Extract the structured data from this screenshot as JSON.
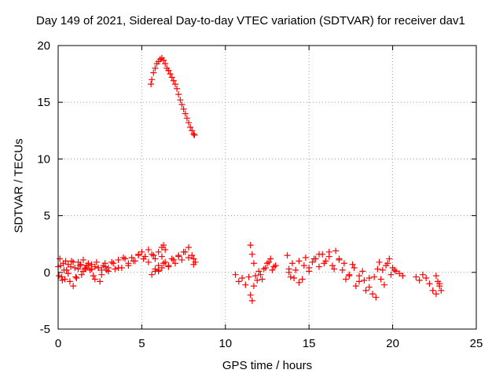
{
  "chart_data": {
    "type": "scatter",
    "title": "Day 149 of 2021, Sidereal Day-to-day VTEC variation (SDTVAR) for receiver dav1",
    "xlabel": "GPS time / hours",
    "ylabel": "SDTVAR / TECUs",
    "xlim": [
      0,
      25
    ],
    "ylim": [
      -5,
      20
    ],
    "xticks": [
      0,
      5,
      10,
      15,
      20,
      25
    ],
    "yticks": [
      -5,
      0,
      5,
      10,
      15,
      20
    ],
    "grid": true,
    "marker": "plus",
    "color": "#ff0000",
    "series": [
      {
        "name": "SDTVAR",
        "x": [
          0.0,
          0.1,
          0.2,
          0.3,
          0.4,
          0.5,
          0.6,
          0.7,
          0.8,
          0.9,
          1.0,
          1.1,
          1.2,
          1.3,
          1.4,
          1.5,
          1.6,
          1.7,
          1.8,
          1.9,
          2.0,
          2.1,
          2.2,
          2.3,
          2.4,
          2.5,
          2.6,
          2.7,
          2.8,
          2.9,
          3.0,
          3.2,
          3.4,
          3.6,
          3.8,
          4.0,
          4.2,
          4.4,
          4.6,
          4.8,
          5.0,
          5.2,
          5.4,
          5.6,
          5.8,
          6.0,
          6.2,
          6.3,
          6.4,
          6.2,
          6.0,
          5.8,
          5.6,
          5.8,
          6.0,
          6.2,
          6.4,
          6.6,
          6.8,
          7.0,
          7.2,
          7.4,
          7.6,
          7.8,
          8.0,
          8.1,
          8.2,
          5.55,
          5.6,
          5.7,
          5.8,
          5.9,
          6.0,
          6.1,
          6.2,
          6.3,
          6.4,
          6.5,
          6.6,
          6.7,
          6.8,
          6.9,
          7.0,
          7.1,
          7.2,
          7.3,
          7.4,
          7.5,
          7.6,
          7.7,
          7.8,
          7.9,
          8.0,
          8.1,
          8.15,
          0.05,
          0.15,
          0.25,
          0.35,
          0.45,
          0.6,
          0.75,
          0.9,
          1.05,
          1.2,
          1.35,
          1.5,
          1.65,
          1.8,
          2.0,
          2.2,
          2.4,
          2.6,
          2.8,
          3.0,
          3.3,
          3.6,
          3.9,
          4.2,
          4.5,
          4.8,
          5.1,
          5.4,
          5.7,
          6.0,
          6.3,
          6.6,
          6.9,
          7.2,
          7.5,
          7.8,
          8.1,
          10.6,
          10.8,
          11.0,
          11.2,
          11.4,
          11.5,
          11.6,
          11.7,
          11.8,
          12.0,
          12.2,
          12.4,
          12.6,
          12.8,
          13.0,
          11.5,
          11.6,
          11.7,
          11.9,
          12.1,
          12.3,
          12.5,
          12.7,
          12.9,
          13.7,
          13.8,
          13.9,
          14.0,
          14.2,
          14.4,
          14.6,
          14.8,
          15.0,
          15.2,
          15.4,
          15.6,
          15.8,
          16.0,
          16.2,
          16.4,
          16.6,
          16.8,
          17.0,
          17.2,
          17.4,
          17.6,
          17.8,
          18.0,
          18.2,
          18.4,
          18.6,
          18.8,
          19.0,
          19.2,
          19.4,
          19.6,
          19.8,
          20.0,
          20.2,
          20.4,
          20.6,
          13.8,
          14.1,
          14.4,
          14.7,
          15.0,
          15.3,
          15.6,
          15.9,
          16.2,
          16.5,
          16.8,
          17.1,
          17.4,
          17.7,
          18.0,
          18.3,
          18.6,
          18.9,
          19.1,
          19.3,
          19.5,
          19.7,
          19.9,
          20.1,
          21.4,
          21.6,
          21.8,
          22.0,
          22.2,
          22.4,
          22.6,
          22.7,
          22.8,
          22.9,
          22.6,
          22.8
        ],
        "y": [
          0.5,
          1.2,
          -0.4,
          0.8,
          -0.6,
          0.2,
          0.7,
          -0.8,
          1.0,
          -1.2,
          0.4,
          -0.5,
          0.9,
          0.6,
          -0.2,
          1.1,
          0.3,
          0.6,
          0.8,
          0.2,
          0.7,
          -0.3,
          0.5,
          0.9,
          0.4,
          -0.8,
          -0.2,
          0.6,
          0.8,
          0.2,
          0.4,
          0.9,
          0.3,
          1.1,
          0.4,
          1.2,
          0.8,
          1.3,
          1.0,
          1.5,
          1.8,
          1.4,
          2.0,
          1.6,
          1.2,
          1.8,
          2.2,
          2.4,
          2.0,
          1.4,
          0.6,
          0.1,
          -0.2,
          0.3,
          0.1,
          0.4,
          0.9,
          0.6,
          1.2,
          0.8,
          1.4,
          1.1,
          1.8,
          2.2,
          1.5,
          1.2,
          0.9,
          16.6,
          17.0,
          17.6,
          18.0,
          18.4,
          18.6,
          18.8,
          18.9,
          18.7,
          18.4,
          18.0,
          17.8,
          17.5,
          17.2,
          16.9,
          16.6,
          16.2,
          15.7,
          15.2,
          14.8,
          14.4,
          14.0,
          13.6,
          13.2,
          12.8,
          12.5,
          12.2,
          12.1,
          -0.3,
          0.6,
          -0.7,
          0.2,
          1.0,
          -0.1,
          0.5,
          0.9,
          -0.4,
          0.3,
          0.7,
          0.1,
          0.4,
          0.6,
          0.3,
          -0.6,
          0.4,
          0.2,
          0.5,
          0.1,
          0.8,
          0.4,
          1.3,
          0.6,
          1.0,
          1.6,
          1.2,
          0.9,
          1.5,
          0.2,
          0.8,
          0.5,
          1.1,
          1.5,
          1.8,
          1.3,
          0.7,
          -0.2,
          -0.8,
          -0.5,
          -1.1,
          -0.4,
          -2.0,
          -2.5,
          0.8,
          -0.3,
          0.1,
          -0.6,
          0.4,
          0.9,
          0.2,
          0.6,
          2.4,
          1.6,
          -1.2,
          -0.7,
          -0.2,
          0.3,
          0.8,
          1.2,
          0.5,
          1.5,
          0.3,
          -0.4,
          0.8,
          0.2,
          1.0,
          -0.6,
          1.3,
          0.4,
          0.9,
          1.2,
          0.5,
          1.6,
          1.0,
          1.8,
          0.6,
          1.9,
          1.1,
          0.2,
          -0.6,
          -0.3,
          0.7,
          -1.2,
          -0.8,
          0.1,
          -1.6,
          -0.5,
          -1.9,
          -2.2,
          0.9,
          0.2,
          0.6,
          1.2,
          0.4,
          0.1,
          -0.1,
          -0.3,
          0.0,
          -0.5,
          -0.9,
          0.6,
          0.1,
          1.2,
          1.6,
          0.8,
          1.4,
          0.3,
          1.2,
          0.8,
          -0.2,
          0.4,
          -0.3,
          -0.7,
          -1.3,
          -0.4,
          0.3,
          -0.6,
          -1.1,
          0.8,
          -0.2,
          0.2,
          -0.4,
          -0.7,
          -0.2,
          -0.5,
          -1.0,
          -1.6,
          -0.3,
          -0.8,
          -1.2,
          -1.6,
          -1.9,
          -1.0
        ]
      }
    ]
  }
}
